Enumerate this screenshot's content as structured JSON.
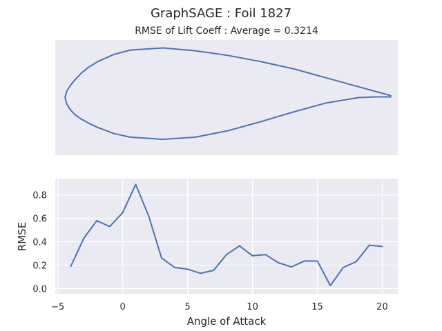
{
  "figure": {
    "suptitle": "GraphSAGE   :   Foil 1827",
    "background": "#ffffff",
    "panel_bg": "#eaeaf2",
    "grid_color": "#ffffff",
    "line_color": "#4c72b0",
    "text_color": "#262626"
  },
  "chart_data": [
    {
      "type": "line",
      "panel": "airfoil",
      "title": "RMSE of Lift Coeff : Average = 0.3214",
      "xlabel": "",
      "ylabel": "",
      "axes_visible": false,
      "grid": false,
      "xlim": [
        -0.03,
        1.02
      ],
      "ylim": [
        -0.16,
        0.16
      ],
      "series": [
        {
          "x": [
            1.0,
            0.9,
            0.8,
            0.7,
            0.6,
            0.5,
            0.4,
            0.3,
            0.2,
            0.15,
            0.1,
            0.07,
            0.05,
            0.03,
            0.015,
            0.005,
            0.0,
            0.005,
            0.015,
            0.03,
            0.05,
            0.07,
            0.1,
            0.15,
            0.2,
            0.3,
            0.4,
            0.5,
            0.6,
            0.7,
            0.8,
            0.9,
            0.95,
            1.0
          ],
          "y": [
            0.005,
            0.03,
            0.055,
            0.08,
            0.1,
            0.117,
            0.13,
            0.138,
            0.132,
            0.12,
            0.1,
            0.083,
            0.068,
            0.049,
            0.032,
            0.017,
            0.0,
            -0.017,
            -0.032,
            -0.047,
            -0.06,
            -0.07,
            -0.083,
            -0.1,
            -0.11,
            -0.116,
            -0.11,
            -0.092,
            -0.067,
            -0.04,
            -0.015,
            0.0,
            0.002,
            0.002
          ]
        }
      ]
    },
    {
      "type": "line",
      "panel": "rmse",
      "title": "",
      "xlabel": "Angle of Attack",
      "ylabel": "RMSE",
      "grid": true,
      "xlim": [
        -5.2,
        21.2
      ],
      "ylim": [
        -0.045,
        0.94
      ],
      "xticks": [
        -5,
        0,
        5,
        10,
        15,
        20
      ],
      "yticks": [
        0.0,
        0.2,
        0.4,
        0.6,
        0.8
      ],
      "xtick_labels": [
        "−5",
        "0",
        "5",
        "10",
        "15",
        "20"
      ],
      "ytick_labels": [
        "0.0",
        "0.2",
        "0.4",
        "0.6",
        "0.8"
      ],
      "series": [
        {
          "x": [
            -4,
            -3,
            -2,
            -1,
            0,
            1,
            2,
            3,
            4,
            5,
            6,
            7,
            8,
            9,
            10,
            11,
            12,
            13,
            14,
            15,
            16,
            17,
            18,
            19,
            20
          ],
          "y": [
            0.19,
            0.43,
            0.58,
            0.53,
            0.65,
            0.89,
            0.62,
            0.26,
            0.18,
            0.165,
            0.13,
            0.155,
            0.29,
            0.365,
            0.28,
            0.29,
            0.22,
            0.185,
            0.235,
            0.235,
            0.025,
            0.18,
            0.23,
            0.37,
            0.36
          ]
        }
      ]
    }
  ]
}
